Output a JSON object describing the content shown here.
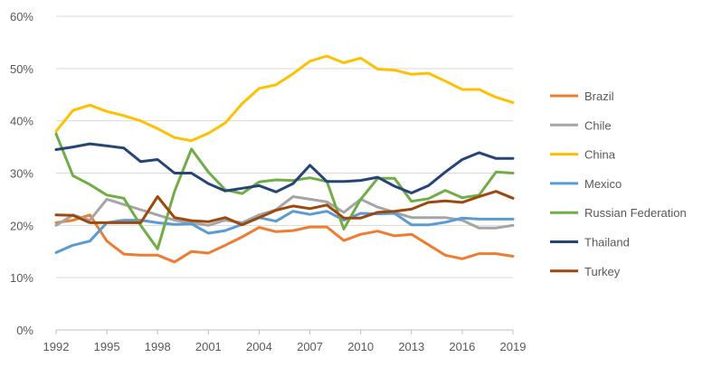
{
  "chart_data": {
    "type": "line",
    "title": "",
    "xlabel": "",
    "ylabel": "",
    "ylim": [
      0,
      60
    ],
    "y_ticks": [
      "0%",
      "10%",
      "20%",
      "30%",
      "40%",
      "50%",
      "60%"
    ],
    "y_tick_values": [
      0,
      10,
      20,
      30,
      40,
      50,
      60
    ],
    "x_ticks": [
      1992,
      1995,
      1998,
      2001,
      2004,
      2007,
      2010,
      2013,
      2016,
      2019
    ],
    "grid": true,
    "legend_position": "right",
    "x": [
      1992,
      1993,
      1994,
      1995,
      1996,
      1997,
      1998,
      1999,
      2000,
      2001,
      2002,
      2003,
      2004,
      2005,
      2006,
      2007,
      2008,
      2009,
      2010,
      2011,
      2012,
      2013,
      2014,
      2015,
      2016,
      2017,
      2018,
      2019
    ],
    "series": [
      {
        "name": "Brazil",
        "color": "#ed7d31",
        "values": [
          20.5,
          21.0,
          22.0,
          17.0,
          14.5,
          14.3,
          14.3,
          13.0,
          15.0,
          14.7,
          16.2,
          17.8,
          19.6,
          18.8,
          19.0,
          19.7,
          19.7,
          17.1,
          18.3,
          18.9,
          18.0,
          18.3,
          16.3,
          14.3,
          13.6,
          14.6,
          14.6,
          14.1
        ]
      },
      {
        "name": "Chile",
        "color": "#a5a5a5",
        "values": [
          20.0,
          22.0,
          21.0,
          25.0,
          24.0,
          23.0,
          22.0,
          21.0,
          20.5,
          20.0,
          21.0,
          20.5,
          22.0,
          23.0,
          25.5,
          25.0,
          24.5,
          22.5,
          25.0,
          23.5,
          22.5,
          21.5,
          21.5,
          21.5,
          21.0,
          19.5,
          19.5,
          20.0
        ]
      },
      {
        "name": "China",
        "color": "#ffc000",
        "values": [
          38.0,
          42.0,
          43.0,
          41.8,
          41.0,
          40.0,
          38.5,
          36.8,
          36.2,
          37.6,
          39.6,
          43.3,
          46.2,
          46.9,
          49.0,
          51.4,
          52.4,
          51.1,
          52.0,
          49.9,
          49.7,
          48.9,
          49.1,
          47.6,
          46.0,
          46.0,
          44.5,
          43.5
        ]
      },
      {
        "name": "Mexico",
        "color": "#5b9bd5",
        "values": [
          14.8,
          16.2,
          17.0,
          20.5,
          21.0,
          21.0,
          20.5,
          20.2,
          20.3,
          18.5,
          19.0,
          20.2,
          21.5,
          20.8,
          22.7,
          22.1,
          22.7,
          21.0,
          22.3,
          22.2,
          22.3,
          20.1,
          20.1,
          20.6,
          21.4,
          21.2,
          21.2,
          21.2
        ]
      },
      {
        "name": "Russian Federation",
        "color": "#70ad47",
        "values": [
          37.5,
          29.5,
          27.8,
          25.8,
          25.2,
          20.0,
          15.5,
          26.5,
          34.6,
          30.2,
          26.8,
          26.1,
          28.3,
          28.7,
          28.6,
          29.1,
          28.4,
          19.3,
          25.0,
          29.0,
          29.0,
          24.6,
          25.1,
          26.7,
          25.3,
          25.8,
          30.2,
          30.0
        ]
      },
      {
        "name": "Thailand",
        "color": "#264478",
        "values": [
          34.5,
          35.0,
          35.6,
          35.2,
          34.8,
          32.2,
          32.6,
          30.0,
          30.0,
          28.0,
          26.6,
          27.1,
          27.6,
          26.4,
          28.0,
          31.5,
          28.4,
          28.4,
          28.6,
          29.2,
          27.5,
          26.2,
          27.6,
          30.2,
          32.6,
          33.9,
          32.8,
          32.8
        ]
      },
      {
        "name": "Turkey",
        "color": "#9e480e",
        "values": [
          22.0,
          21.9,
          20.5,
          20.5,
          20.5,
          20.5,
          25.5,
          21.5,
          20.9,
          20.7,
          21.5,
          20.1,
          21.5,
          22.9,
          23.7,
          23.2,
          23.9,
          21.4,
          21.4,
          22.5,
          22.7,
          23.1,
          24.4,
          24.7,
          24.4,
          25.5,
          26.5,
          25.2
        ]
      }
    ]
  }
}
